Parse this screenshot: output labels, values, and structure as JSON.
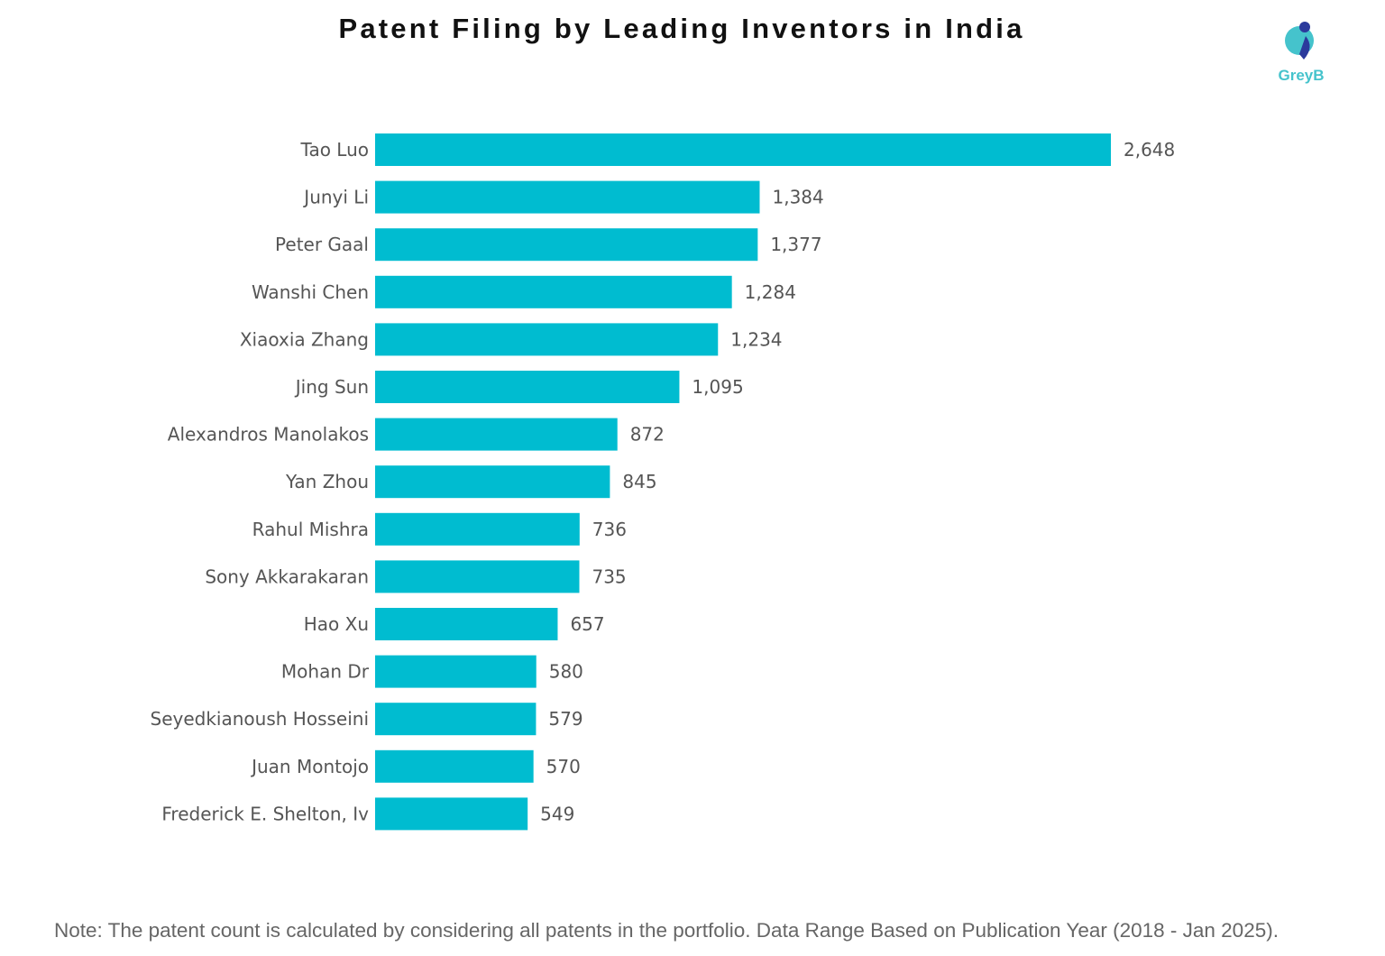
{
  "chart_data": {
    "type": "bar",
    "orientation": "horizontal",
    "title": "Patent Filing by Leading Inventors in India",
    "categories": [
      "Tao Luo",
      "Junyi Li",
      "Peter Gaal",
      "Wanshi Chen",
      "Xiaoxia Zhang",
      "Jing Sun",
      "Alexandros Manolakos",
      "Yan Zhou",
      "Rahul Mishra",
      "Sony Akkarakaran",
      "Hao Xu",
      "Mohan Dr",
      "Seyedkianoush Hosseini",
      "Juan Montojo",
      "Frederick E. Shelton, Iv"
    ],
    "values": [
      2648,
      1384,
      1377,
      1284,
      1234,
      1095,
      872,
      845,
      736,
      735,
      657,
      580,
      579,
      570,
      549
    ],
    "value_labels": [
      "2,648",
      "1,384",
      "1,377",
      "1,284",
      "1,234",
      "1,095",
      "872",
      "845",
      "736",
      "735",
      "657",
      "580",
      "579",
      "570",
      "549"
    ],
    "xlim": [
      0,
      2648
    ],
    "grid": false,
    "bar_color": "#00BCD0",
    "xlabel": "",
    "ylabel": ""
  },
  "logo": {
    "text": "GreyB",
    "color": "#45C3CC",
    "accent": "#2B3A9C"
  },
  "note": "Note: The patent count is calculated by considering all patents in the portfolio. Data Range Based on Publication Year (2018 - Jan 2025)."
}
